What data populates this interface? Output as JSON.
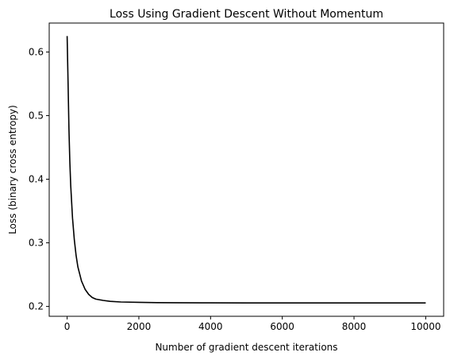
{
  "chart_data": {
    "type": "line",
    "title": "Loss Using Gradient Descent Without Momentum",
    "xlabel": "Number of gradient descent iterations",
    "ylabel": "Loss (binary cross entropy)",
    "xlim": [
      -500,
      10500
    ],
    "ylim": [
      0.1845,
      0.6455
    ],
    "xticks": [
      0,
      2000,
      4000,
      6000,
      8000,
      10000
    ],
    "xtick_labels": [
      "0",
      "2000",
      "4000",
      "6000",
      "8000",
      "10000"
    ],
    "yticks": [
      0.2,
      0.3,
      0.4,
      0.5,
      0.6
    ],
    "ytick_labels": [
      "0.2",
      "0.3",
      "0.4",
      "0.5",
      "0.6"
    ],
    "grid": false,
    "line_color": "#000000",
    "series": [
      {
        "x": [
          0,
          25,
          50,
          75,
          100,
          150,
          200,
          250,
          300,
          400,
          500,
          600,
          700,
          800,
          1000,
          1200,
          1500,
          2000,
          2500,
          3000,
          4000,
          5000,
          6000,
          7000,
          8000,
          9000,
          10000
        ],
        "values": [
          0.625,
          0.555,
          0.48,
          0.428,
          0.39,
          0.339,
          0.305,
          0.28,
          0.262,
          0.24,
          0.227,
          0.219,
          0.214,
          0.2115,
          0.2095,
          0.208,
          0.207,
          0.2065,
          0.206,
          0.2058,
          0.2056,
          0.2055,
          0.2055,
          0.2055,
          0.2055,
          0.2055,
          0.2055
        ]
      }
    ]
  }
}
